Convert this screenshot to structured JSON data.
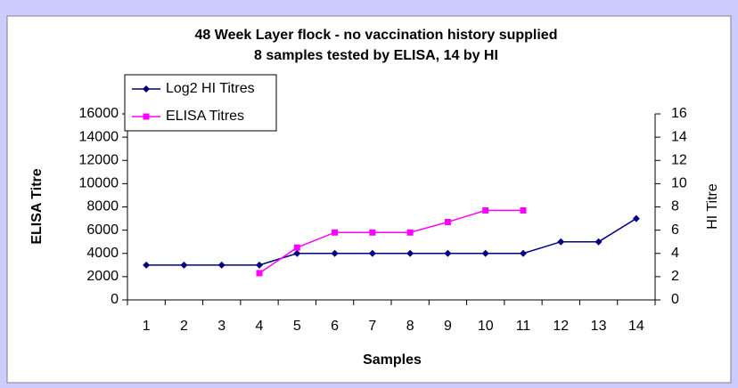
{
  "chart_data": {
    "type": "line",
    "title": "48 Week Layer flock - no vaccination history supplied",
    "subtitle": "8 samples tested by ELISA, 14 by HI",
    "x_label": "Samples",
    "y_label": "ELISA Titre",
    "y2_label": "HI Titre",
    "categories": [
      "1",
      "2",
      "3",
      "4",
      "5",
      "6",
      "7",
      "8",
      "9",
      "10",
      "11",
      "12",
      "13",
      "14"
    ],
    "series": [
      {
        "name": "Log2 HI Titres",
        "color": "#000080",
        "marker": "diamond",
        "axis": "y2",
        "values": [
          3,
          3,
          3,
          3,
          4,
          4,
          4,
          4,
          4,
          4,
          4,
          5,
          5,
          7
        ]
      },
      {
        "name": "ELISA Titres",
        "color": "#ff00ff",
        "marker": "square",
        "values": [
          null,
          null,
          null,
          2300,
          4500,
          5800,
          5800,
          5800,
          6700,
          7700,
          7700,
          null,
          null,
          null
        ]
      }
    ],
    "ylim": [
      0,
      16000
    ],
    "yticks": [
      0,
      2000,
      4000,
      6000,
      8000,
      10000,
      12000,
      14000,
      16000
    ],
    "y2lim": [
      0,
      16
    ],
    "y2ticks": [
      0,
      2,
      4,
      6,
      8,
      10,
      12,
      14,
      16
    ],
    "grid": false,
    "legend": "top-left"
  }
}
